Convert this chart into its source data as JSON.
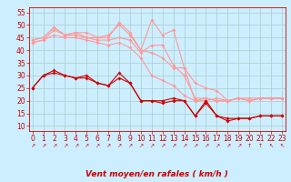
{
  "title": "",
  "xlabel": "Vent moyen/en rafales ( km/h )",
  "background_color": "#cceeff",
  "grid_color": "#aacccc",
  "x_ticks": [
    0,
    1,
    2,
    3,
    4,
    5,
    6,
    7,
    8,
    9,
    10,
    11,
    12,
    13,
    14,
    15,
    16,
    17,
    18,
    19,
    20,
    21,
    22,
    23
  ],
  "ylim": [
    8,
    57
  ],
  "xlim": [
    -0.3,
    23.3
  ],
  "yticks": [
    10,
    15,
    20,
    25,
    30,
    35,
    40,
    45,
    50,
    55
  ],
  "lines_dark": [
    [
      25,
      30,
      31,
      30,
      29,
      30,
      27,
      26,
      31,
      27,
      20,
      20,
      19,
      20,
      20,
      14,
      19,
      14,
      13,
      13,
      13,
      14,
      14,
      14
    ],
    [
      25,
      30,
      32,
      30,
      29,
      29,
      27,
      26,
      29,
      27,
      20,
      20,
      20,
      21,
      20,
      14,
      20,
      14,
      12,
      13,
      13,
      14,
      14,
      14
    ]
  ],
  "lines_light": [
    [
      44,
      45,
      49,
      46,
      47,
      47,
      45,
      45,
      51,
      47,
      40,
      39,
      37,
      33,
      33,
      20,
      20,
      21,
      20,
      21,
      21,
      21,
      21,
      21
    ],
    [
      44,
      45,
      49,
      46,
      47,
      45,
      45,
      46,
      50,
      46,
      40,
      52,
      46,
      48,
      33,
      27,
      25,
      24,
      20,
      21,
      20,
      21,
      21,
      21
    ],
    [
      43,
      44,
      48,
      46,
      46,
      45,
      44,
      44,
      45,
      44,
      39,
      42,
      42,
      34,
      30,
      21,
      21,
      20,
      20,
      21,
      20,
      21,
      21,
      21
    ],
    [
      43,
      44,
      46,
      45,
      45,
      44,
      43,
      42,
      43,
      41,
      37,
      30,
      28,
      26,
      22,
      20,
      21,
      20,
      20,
      21,
      20,
      21,
      21,
      21
    ]
  ],
  "dark_color": "#cc0000",
  "light_color": "#ff9999",
  "marker": "D",
  "marker_size": 2.0,
  "linewidth": 0.8,
  "tick_fontsize": 5.5,
  "xlabel_fontsize": 6.5
}
